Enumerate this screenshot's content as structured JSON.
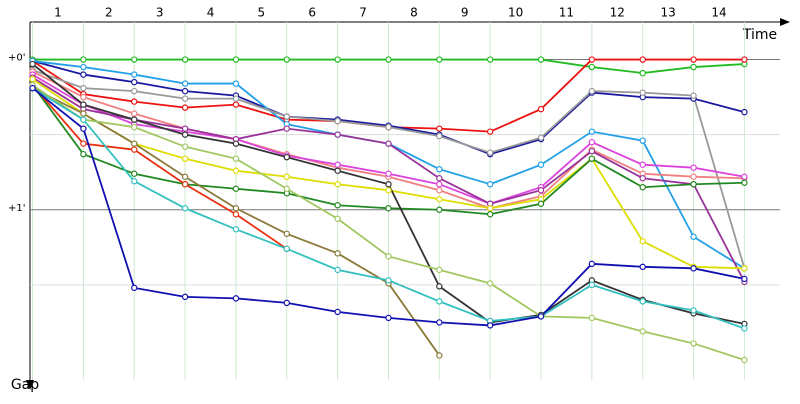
{
  "chart_data": {
    "type": "line",
    "x_label": "Time",
    "y_label": "Gap",
    "x": [
      0,
      1,
      2,
      3,
      4,
      5,
      6,
      7,
      8,
      9,
      10,
      11,
      12,
      13,
      14
    ],
    "xlim": [
      -0.05,
      14.7
    ],
    "xticks": [
      {
        "value": 0.5,
        "label": "1"
      },
      {
        "value": 1.5,
        "label": "2"
      },
      {
        "value": 2.5,
        "label": "3"
      },
      {
        "value": 3.5,
        "label": "4"
      },
      {
        "value": 4.5,
        "label": "5"
      },
      {
        "value": 5.5,
        "label": "6"
      },
      {
        "value": 6.5,
        "label": "7"
      },
      {
        "value": 7.5,
        "label": "8"
      },
      {
        "value": 8.5,
        "label": "9"
      },
      {
        "value": 9.5,
        "label": "10"
      },
      {
        "value": 10.5,
        "label": "11"
      },
      {
        "value": 11.5,
        "label": "12"
      },
      {
        "value": 12.5,
        "label": "13"
      },
      {
        "value": 13.5,
        "label": "14"
      }
    ],
    "ylim": [
      -0.25,
      2.2
    ],
    "y_direction": "down",
    "yticks": [
      {
        "value": 0,
        "label": "+0'"
      },
      {
        "value": 1,
        "label": "+1'"
      }
    ],
    "minor_yticks": [
      0.5,
      1.5
    ],
    "grid": true,
    "series": [
      {
        "color": "#22bb22",
        "values": [
          0,
          0,
          0,
          0,
          0,
          0,
          0,
          0,
          0,
          0,
          0,
          0.05,
          0.09,
          0.05,
          0.03
        ]
      },
      {
        "color": "#ee1111",
        "values": [
          0.01,
          0.23,
          0.28,
          0.32,
          0.3,
          0.4,
          0.41,
          0.45,
          0.46,
          0.48,
          0.33,
          0,
          0,
          0,
          0
        ]
      },
      {
        "color": "#1a1aa0",
        "values": [
          0.01,
          0.1,
          0.15,
          0.21,
          0.24,
          0.38,
          0.4,
          0.44,
          0.5,
          0.63,
          0.53,
          0.22,
          0.25,
          0.26,
          0.35
        ]
      },
      {
        "color": "#22a0e8",
        "values": [
          0.01,
          0.05,
          0.1,
          0.16,
          0.16,
          0.43,
          0.5,
          0.56,
          0.73,
          0.83,
          0.7,
          0.48,
          0.54,
          1.18,
          1.39
        ]
      },
      {
        "color": "#999999",
        "values": [
          0.07,
          0.19,
          0.21,
          0.26,
          0.26,
          0.38,
          0.41,
          0.45,
          0.51,
          0.62,
          0.52,
          0.21,
          0.22,
          0.24,
          1.39
        ]
      },
      {
        "color": "#f08080",
        "values": [
          0.08,
          0.25,
          0.36,
          0.46,
          0.53,
          0.63,
          0.72,
          0.78,
          0.87,
          0.99,
          0.91,
          0.6,
          0.76,
          0.78,
          0.79
        ]
      },
      {
        "color": "#dd44dd",
        "values": [
          0.1,
          0.3,
          0.43,
          0.48,
          0.53,
          0.64,
          0.7,
          0.76,
          0.83,
          0.96,
          0.85,
          0.55,
          0.7,
          0.72,
          0.78
        ]
      },
      {
        "color": "#993399",
        "values": [
          0.12,
          0.33,
          0.4,
          0.46,
          0.53,
          0.46,
          0.5,
          0.56,
          0.79,
          0.96,
          0.87,
          0.61,
          0.79,
          0.83,
          1.48
        ]
      },
      {
        "color": "#dddd00",
        "values": [
          0.13,
          0.36,
          0.56,
          0.66,
          0.74,
          0.78,
          0.83,
          0.87,
          0.93,
          0.99,
          0.93,
          0.66,
          1.21,
          1.38,
          1.39
        ]
      },
      {
        "color": "#228822",
        "values": [
          0.17,
          0.63,
          0.76,
          0.83,
          0.86,
          0.89,
          0.97,
          0.99,
          1.0,
          1.03,
          0.96,
          0.66,
          0.85,
          0.83,
          0.82
        ]
      },
      {
        "color": "#333333",
        "values": [
          0.03,
          0.3,
          0.4,
          0.5,
          0.56,
          0.65,
          0.74,
          0.83,
          1.51,
          1.75,
          1.7,
          1.47,
          1.6,
          1.69,
          1.76
        ]
      },
      {
        "color": "#e83010",
        "values": [
          0.17,
          0.56,
          0.6,
          0.83,
          1.03,
          1.26,
          null,
          null,
          null,
          null,
          null,
          null,
          null,
          null,
          null
        ]
      },
      {
        "color": "#8a7a3a",
        "values": [
          0.19,
          0.36,
          0.56,
          0.78,
          0.99,
          1.16,
          1.29,
          1.49,
          1.97,
          null,
          null,
          null,
          null,
          null,
          null
        ]
      },
      {
        "color": "#a0c860",
        "values": [
          0.17,
          0.4,
          0.45,
          0.58,
          0.66,
          0.86,
          1.06,
          1.31,
          1.4,
          1.49,
          1.71,
          1.72,
          1.81,
          1.89,
          2.0
        ]
      },
      {
        "color": "#33c0c0",
        "values": [
          0.19,
          0.4,
          0.81,
          0.99,
          1.13,
          1.26,
          1.4,
          1.47,
          1.61,
          1.74,
          1.71,
          1.5,
          1.61,
          1.67,
          1.79
        ]
      },
      {
        "color": "#1010b0",
        "values": [
          0.19,
          0.46,
          1.52,
          1.58,
          1.59,
          1.62,
          1.68,
          1.72,
          1.75,
          1.77,
          1.71,
          1.36,
          1.38,
          1.39,
          1.46
        ]
      }
    ]
  }
}
